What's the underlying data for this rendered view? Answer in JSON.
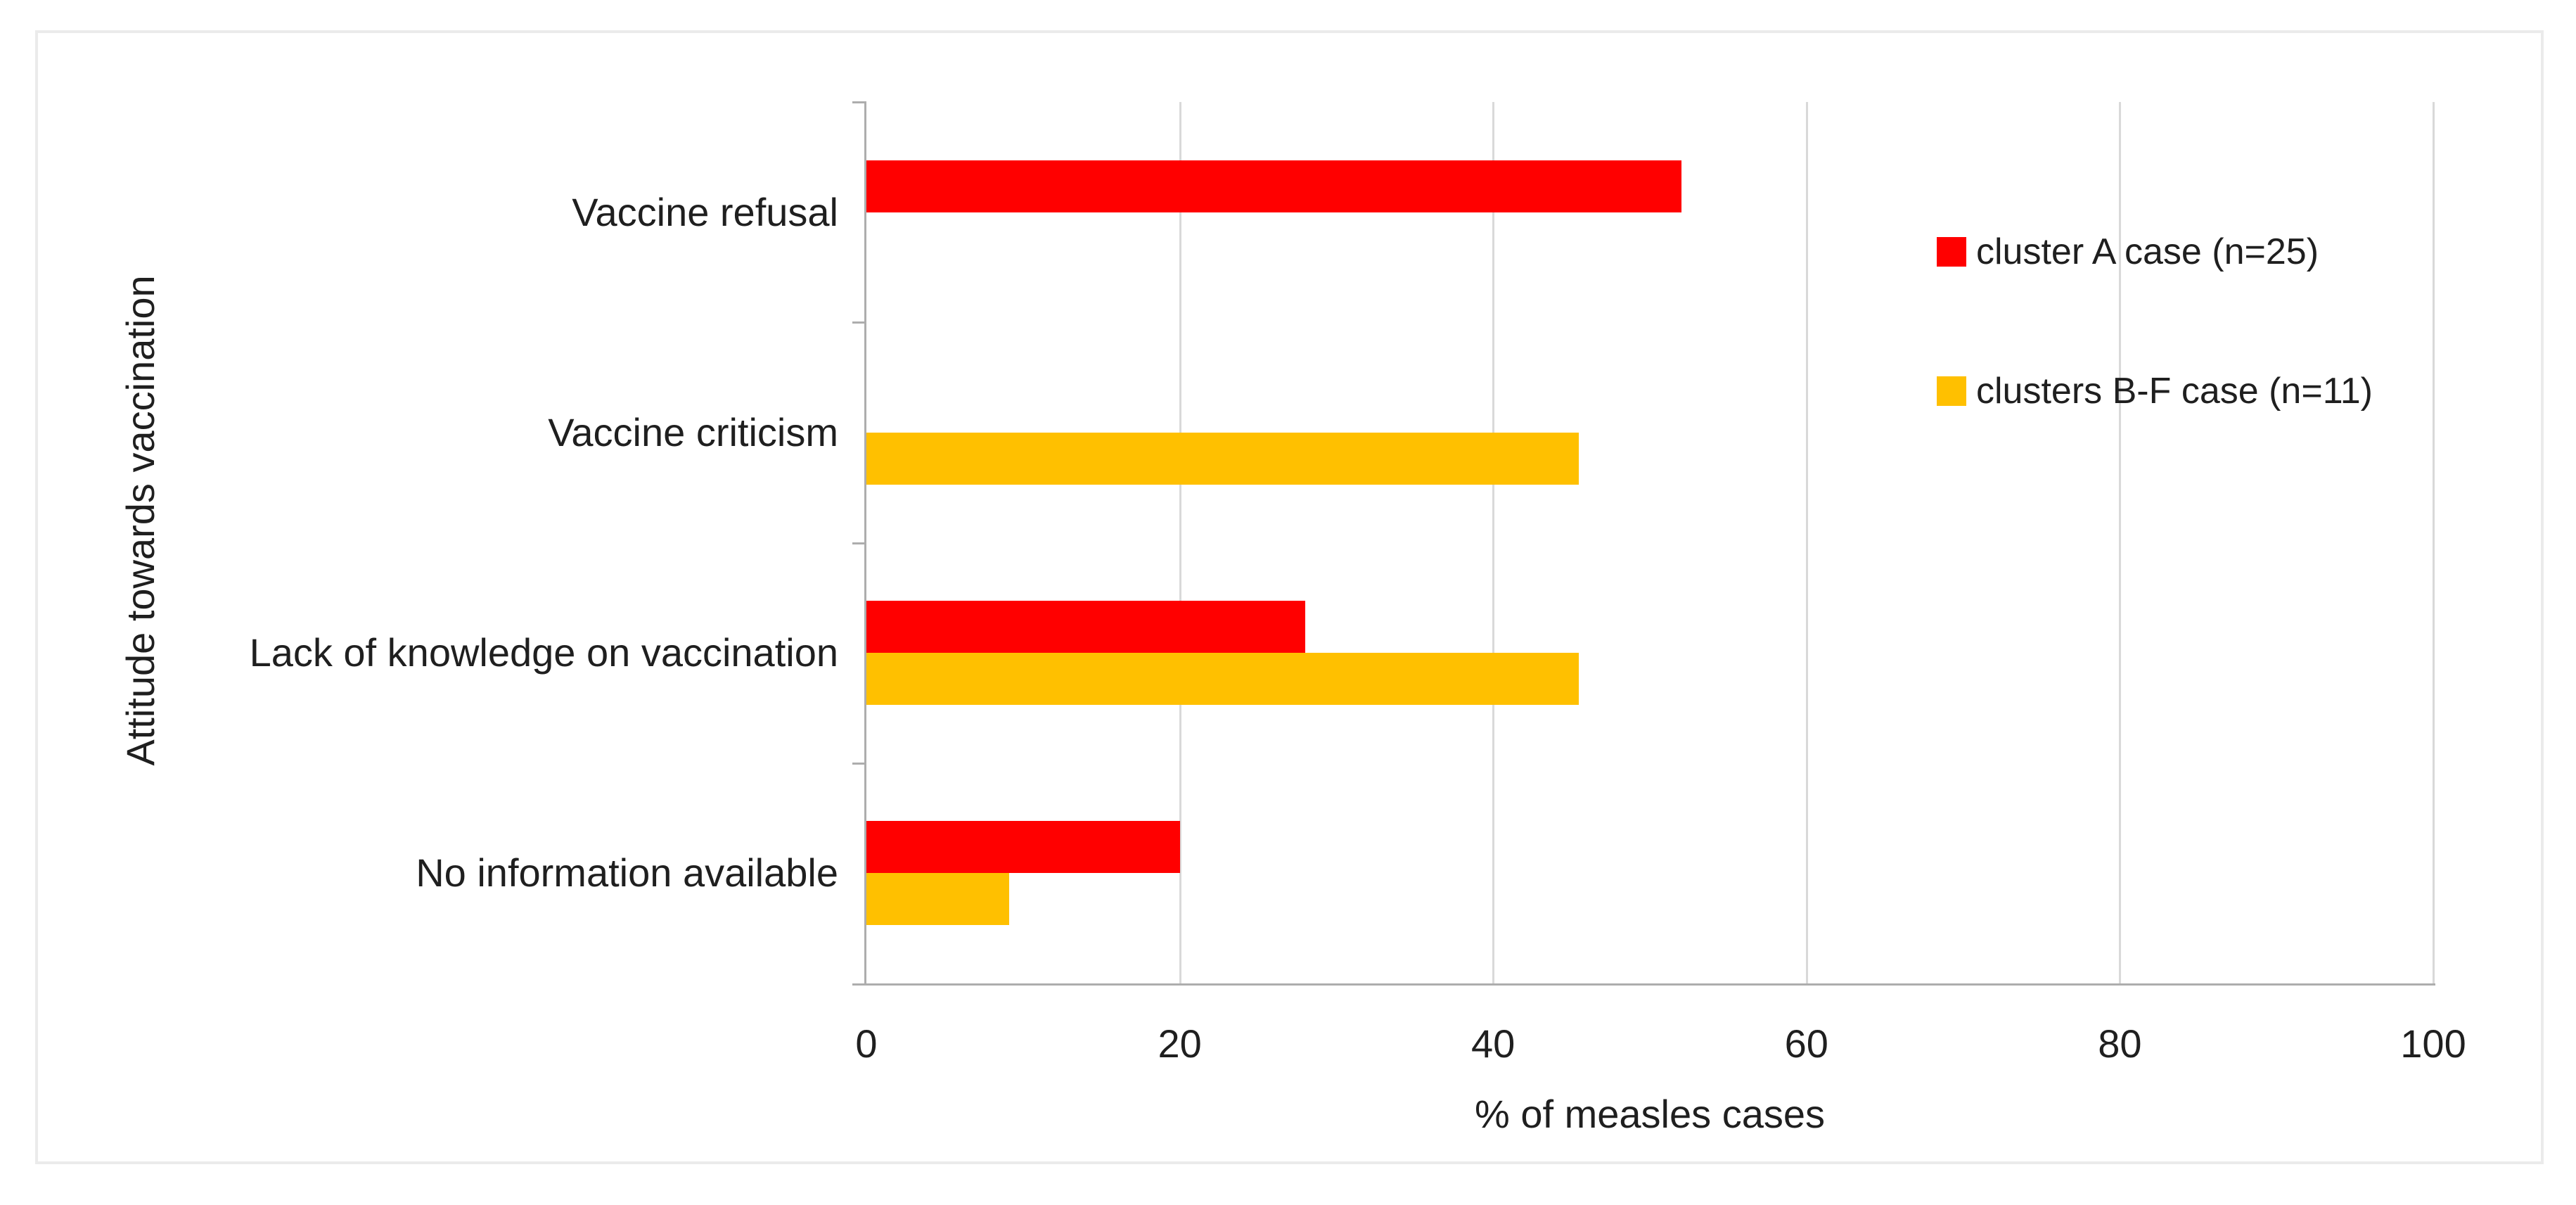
{
  "chart_data": {
    "type": "bar",
    "orientation": "horizontal",
    "categories": [
      "Vaccine refusal",
      "Vaccine criticism",
      "Lack of knowledge on vaccination",
      "No information available"
    ],
    "series": [
      {
        "name": "cluster A case (n=25)",
        "color": "#FF0000",
        "values": [
          52,
          0,
          28,
          20
        ]
      },
      {
        "name": "clusters B-F case (n=11)",
        "color": "#FFC000",
        "values": [
          0,
          45.45,
          45.45,
          9.09
        ]
      }
    ],
    "xlabel": "% of measles cases",
    "ylabel": "Attitude towards vaccination",
    "xlim": [
      0,
      100
    ],
    "xticks": [
      0,
      20,
      40,
      60,
      80,
      100
    ],
    "grid": true,
    "legend_position": "upper right inside plot"
  },
  "colors": {
    "series_cluster_a": "#FF0000",
    "series_clusters_bf": "#FFC000",
    "gridline": "#D9D9D9",
    "axis_line": "#ADADAD",
    "text": "#1F1F1F",
    "frame_border": "#EBEBEB",
    "background": "#FFFFFF"
  }
}
